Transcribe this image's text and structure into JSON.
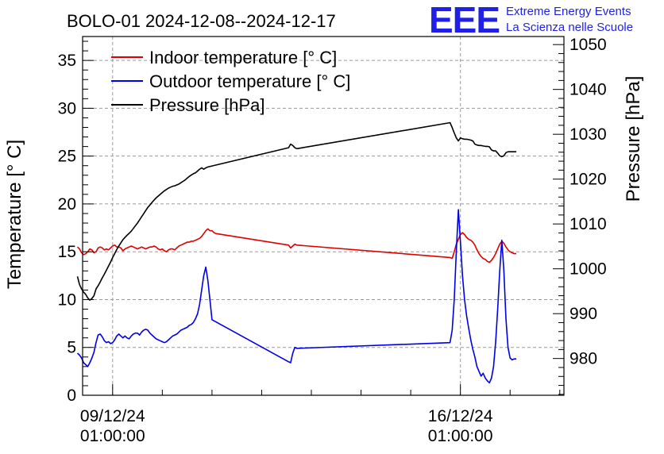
{
  "header": {
    "title": "BOLO-01 2024-12-08--2024-12-17"
  },
  "logo": {
    "mark": "EEE",
    "line1": "Extreme Energy Events",
    "line2": "La Scienza nelle Scuole"
  },
  "colors": {
    "indoor": "#e00000",
    "outdoor": "#0000e6",
    "pressure": "#000000",
    "logo": "#1f1fe8"
  },
  "chart_data": {
    "type": "line",
    "title": "BOLO-01 2024-12-08--2024-12-17",
    "x_unit": "hours since 2024-12-08 00:00",
    "xlim": [
      10.5,
      243
    ],
    "ylabel_left": "Temperature [° C]",
    "ylabel_right": "Pressure [hPa]",
    "ylim_left": [
      0,
      37.5
    ],
    "ylim_right": [
      971.8,
      1051.8
    ],
    "x_ticks": [
      {
        "x": 25,
        "label1": "09/12/24",
        "label2": "01:00:00"
      },
      {
        "x": 193,
        "label1": "16/12/24",
        "label2": "01:00:00"
      }
    ],
    "y_ticks_left": [
      0,
      5,
      10,
      15,
      20,
      25,
      30,
      35
    ],
    "y_ticks_right": [
      980,
      990,
      1000,
      1010,
      1020,
      1030,
      1040,
      1050
    ],
    "legend_position": "top-left",
    "grid": true,
    "series": [
      {
        "name": "Indoor temperature [° C]",
        "axis": "left",
        "color": "#e00000",
        "points": [
          [
            8,
            15.5
          ],
          [
            9,
            15.3
          ],
          [
            10,
            14.9
          ],
          [
            11,
            14.7
          ],
          [
            12,
            14.8
          ],
          [
            13,
            15.0
          ],
          [
            14,
            15.3
          ],
          [
            15,
            15.2
          ],
          [
            16,
            14.9
          ],
          [
            17,
            15.0
          ],
          [
            18,
            15.4
          ],
          [
            19,
            15.5
          ],
          [
            20,
            15.4
          ],
          [
            21,
            15.2
          ],
          [
            22,
            15.3
          ],
          [
            23,
            15.2
          ],
          [
            24,
            15.4
          ],
          [
            25,
            15.6
          ],
          [
            26,
            15.7
          ],
          [
            27,
            15.5
          ],
          [
            28,
            15.5
          ],
          [
            29,
            15.4
          ],
          [
            30,
            15.1
          ],
          [
            31,
            15.3
          ],
          [
            32,
            15.4
          ],
          [
            33,
            15.5
          ],
          [
            34,
            15.6
          ],
          [
            35,
            15.5
          ],
          [
            36,
            15.4
          ],
          [
            37,
            15.3
          ],
          [
            38,
            15.4
          ],
          [
            39,
            15.5
          ],
          [
            40,
            15.4
          ],
          [
            41,
            15.3
          ],
          [
            42,
            15.4
          ],
          [
            43,
            15.5
          ],
          [
            44,
            15.5
          ],
          [
            45,
            15.6
          ],
          [
            46,
            15.5
          ],
          [
            47,
            15.3
          ],
          [
            48,
            15.2
          ],
          [
            49,
            15.3
          ],
          [
            50,
            15.1
          ],
          [
            51,
            15.0
          ],
          [
            52,
            15.2
          ],
          [
            53,
            15.3
          ],
          [
            54,
            15.3
          ],
          [
            55,
            15.2
          ],
          [
            56,
            15.4
          ],
          [
            57,
            15.6
          ],
          [
            58,
            15.7
          ],
          [
            59,
            15.8
          ],
          [
            60,
            15.9
          ],
          [
            61,
            16.0
          ],
          [
            62,
            16.0
          ],
          [
            63,
            16.1
          ],
          [
            64,
            16.1
          ],
          [
            65,
            16.2
          ],
          [
            66,
            16.3
          ],
          [
            67,
            16.4
          ],
          [
            68,
            16.6
          ],
          [
            69,
            16.9
          ],
          [
            70,
            17.2
          ],
          [
            71,
            17.4
          ],
          [
            72,
            17.2
          ],
          [
            73,
            17.2
          ],
          [
            74,
            17.0
          ],
          [
            75,
            16.9
          ],
          [
            110,
            15.7
          ],
          [
            111,
            15.4
          ],
          [
            112,
            15.6
          ],
          [
            113,
            15.8
          ],
          [
            114,
            15.7
          ],
          [
            188,
            14.4
          ],
          [
            189,
            14.3
          ],
          [
            190,
            15.0
          ],
          [
            191,
            15.8
          ],
          [
            192,
            16.3
          ],
          [
            193,
            16.8
          ],
          [
            194,
            17.0
          ],
          [
            195,
            16.8
          ],
          [
            196,
            16.5
          ],
          [
            197,
            16.3
          ],
          [
            198,
            16.2
          ],
          [
            199,
            16.0
          ],
          [
            200,
            15.7
          ],
          [
            201,
            15.2
          ],
          [
            202,
            14.8
          ],
          [
            203,
            14.5
          ],
          [
            204,
            14.3
          ],
          [
            205,
            14.2
          ],
          [
            206,
            14.0
          ],
          [
            207,
            13.9
          ],
          [
            208,
            14.1
          ],
          [
            209,
            14.4
          ],
          [
            210,
            14.8
          ],
          [
            211,
            15.3
          ],
          [
            212,
            15.8
          ],
          [
            213,
            16.1
          ],
          [
            214,
            15.9
          ],
          [
            215,
            15.5
          ],
          [
            216,
            15.2
          ],
          [
            217,
            15.0
          ],
          [
            218,
            14.9
          ],
          [
            219,
            14.8
          ],
          [
            220,
            14.8
          ]
        ]
      },
      {
        "name": "Outdoor temperature [° C]",
        "axis": "left",
        "color": "#0000e6",
        "points": [
          [
            8,
            4.4
          ],
          [
            9,
            4.2
          ],
          [
            10,
            3.9
          ],
          [
            11,
            3.4
          ],
          [
            12,
            3.2
          ],
          [
            13,
            3.0
          ],
          [
            14,
            3.4
          ],
          [
            15,
            3.9
          ],
          [
            16,
            4.5
          ],
          [
            17,
            5.5
          ],
          [
            18,
            6.3
          ],
          [
            19,
            6.4
          ],
          [
            20,
            6.1
          ],
          [
            21,
            5.7
          ],
          [
            22,
            5.5
          ],
          [
            23,
            5.6
          ],
          [
            24,
            5.4
          ],
          [
            25,
            5.5
          ],
          [
            26,
            5.8
          ],
          [
            27,
            6.2
          ],
          [
            28,
            6.4
          ],
          [
            29,
            6.2
          ],
          [
            30,
            6.0
          ],
          [
            31,
            6.2
          ],
          [
            32,
            6.0
          ],
          [
            33,
            5.9
          ],
          [
            34,
            6.2
          ],
          [
            35,
            6.4
          ],
          [
            36,
            6.5
          ],
          [
            37,
            6.5
          ],
          [
            38,
            6.3
          ],
          [
            39,
            6.6
          ],
          [
            40,
            6.8
          ],
          [
            41,
            6.9
          ],
          [
            42,
            6.8
          ],
          [
            43,
            6.5
          ],
          [
            44,
            6.3
          ],
          [
            45,
            6.1
          ],
          [
            46,
            5.9
          ],
          [
            47,
            5.8
          ],
          [
            48,
            5.7
          ],
          [
            49,
            5.6
          ],
          [
            50,
            5.5
          ],
          [
            51,
            5.6
          ],
          [
            52,
            5.8
          ],
          [
            53,
            6.0
          ],
          [
            54,
            6.2
          ],
          [
            55,
            6.3
          ],
          [
            56,
            6.4
          ],
          [
            57,
            6.6
          ],
          [
            58,
            6.8
          ],
          [
            59,
            6.9
          ],
          [
            60,
            7.0
          ],
          [
            61,
            7.1
          ],
          [
            62,
            7.3
          ],
          [
            63,
            7.4
          ],
          [
            64,
            7.6
          ],
          [
            65,
            8.0
          ],
          [
            66,
            8.5
          ],
          [
            67,
            9.5
          ],
          [
            68,
            11.0
          ],
          [
            69,
            12.5
          ],
          [
            70,
            13.4
          ],
          [
            71,
            12.0
          ],
          [
            72,
            10.0
          ],
          [
            73,
            7.9
          ],
          [
            110,
            3.5
          ],
          [
            111,
            3.4
          ],
          [
            112,
            4.4
          ],
          [
            113,
            5.0
          ],
          [
            114,
            4.9
          ],
          [
            188,
            5.5
          ],
          [
            189,
            6.8
          ],
          [
            190,
            10.0
          ],
          [
            191,
            15.0
          ],
          [
            192,
            19.4
          ],
          [
            193,
            16.0
          ],
          [
            194,
            12.5
          ],
          [
            195,
            10.0
          ],
          [
            196,
            8.3
          ],
          [
            197,
            7.0
          ],
          [
            198,
            5.8
          ],
          [
            199,
            4.8
          ],
          [
            200,
            4.0
          ],
          [
            201,
            3.0
          ],
          [
            202,
            2.5
          ],
          [
            203,
            2.0
          ],
          [
            204,
            2.3
          ],
          [
            205,
            1.8
          ],
          [
            206,
            1.5
          ],
          [
            207,
            1.3
          ],
          [
            208,
            1.8
          ],
          [
            209,
            3.0
          ],
          [
            210,
            5.5
          ],
          [
            211,
            9.0
          ],
          [
            212,
            13.0
          ],
          [
            213,
            16.2
          ],
          [
            214,
            13.0
          ],
          [
            215,
            8.0
          ],
          [
            216,
            5.0
          ],
          [
            217,
            3.9
          ],
          [
            218,
            3.7
          ],
          [
            219,
            3.8
          ],
          [
            220,
            3.8
          ]
        ]
      },
      {
        "name": "Pressure [hPa]",
        "axis": "right",
        "color": "#000000",
        "points": [
          [
            8,
            998.3
          ],
          [
            9,
            996.5
          ],
          [
            10,
            995.5
          ],
          [
            11,
            994.8
          ],
          [
            12,
            994.3
          ],
          [
            13,
            993.5
          ],
          [
            14,
            993.0
          ],
          [
            15,
            993.4
          ],
          [
            16,
            994.0
          ],
          [
            17,
            995.5
          ],
          [
            18,
            996.2
          ],
          [
            19,
            997.1
          ],
          [
            20,
            998.0
          ],
          [
            21,
            998.8
          ],
          [
            22,
            999.7
          ],
          [
            23,
            1000.6
          ],
          [
            24,
            1001.5
          ],
          [
            25,
            1002.5
          ],
          [
            26,
            1003.4
          ],
          [
            27,
            1004.3
          ],
          [
            28,
            1005.1
          ],
          [
            29,
            1005.8
          ],
          [
            30,
            1006.5
          ],
          [
            31,
            1007.0
          ],
          [
            32,
            1007.5
          ],
          [
            33,
            1007.9
          ],
          [
            34,
            1008.4
          ],
          [
            35,
            1009.0
          ],
          [
            36,
            1009.6
          ],
          [
            37,
            1010.2
          ],
          [
            38,
            1010.9
          ],
          [
            39,
            1011.6
          ],
          [
            40,
            1012.3
          ],
          [
            41,
            1013.0
          ],
          [
            42,
            1013.7
          ],
          [
            43,
            1014.2
          ],
          [
            44,
            1014.8
          ],
          [
            45,
            1015.3
          ],
          [
            46,
            1015.8
          ],
          [
            47,
            1016.2
          ],
          [
            48,
            1016.6
          ],
          [
            49,
            1017.0
          ],
          [
            50,
            1017.4
          ],
          [
            51,
            1017.7
          ],
          [
            52,
            1018.0
          ],
          [
            53,
            1018.2
          ],
          [
            54,
            1018.4
          ],
          [
            55,
            1018.5
          ],
          [
            56,
            1018.7
          ],
          [
            57,
            1018.9
          ],
          [
            58,
            1019.2
          ],
          [
            59,
            1019.5
          ],
          [
            60,
            1019.8
          ],
          [
            61,
            1020.2
          ],
          [
            62,
            1020.6
          ],
          [
            63,
            1020.9
          ],
          [
            64,
            1021.2
          ],
          [
            65,
            1021.4
          ],
          [
            66,
            1021.8
          ],
          [
            67,
            1022.2
          ],
          [
            68,
            1022.5
          ],
          [
            69,
            1022.2
          ],
          [
            70,
            1022.5
          ],
          [
            71,
            1022.7
          ],
          [
            110,
            1027.0
          ],
          [
            111,
            1027.8
          ],
          [
            112,
            1027.5
          ],
          [
            113,
            1027.0
          ],
          [
            114,
            1026.8
          ],
          [
            187,
            1032.5
          ],
          [
            188,
            1032.6
          ],
          [
            189,
            1031.5
          ],
          [
            190,
            1030.3
          ],
          [
            191,
            1029.2
          ],
          [
            192,
            1028.5
          ],
          [
            193,
            1029.2
          ],
          [
            194,
            1029.0
          ],
          [
            195,
            1028.9
          ],
          [
            196,
            1028.9
          ],
          [
            197,
            1028.8
          ],
          [
            198,
            1028.7
          ],
          [
            199,
            1028.5
          ],
          [
            200,
            1027.8
          ],
          [
            201,
            1027.6
          ],
          [
            202,
            1027.5
          ],
          [
            203,
            1027.5
          ],
          [
            204,
            1027.4
          ],
          [
            205,
            1027.3
          ],
          [
            206,
            1027.3
          ],
          [
            207,
            1027.2
          ],
          [
            208,
            1026.5
          ],
          [
            209,
            1026.3
          ],
          [
            210,
            1026.3
          ],
          [
            211,
            1025.8
          ],
          [
            212,
            1025.2
          ],
          [
            213,
            1025.0
          ],
          [
            214,
            1025.2
          ],
          [
            215,
            1025.9
          ],
          [
            216,
            1026.1
          ],
          [
            217,
            1026.1
          ],
          [
            218,
            1026.1
          ],
          [
            219,
            1026.1
          ],
          [
            220,
            1026.1
          ]
        ]
      }
    ]
  }
}
